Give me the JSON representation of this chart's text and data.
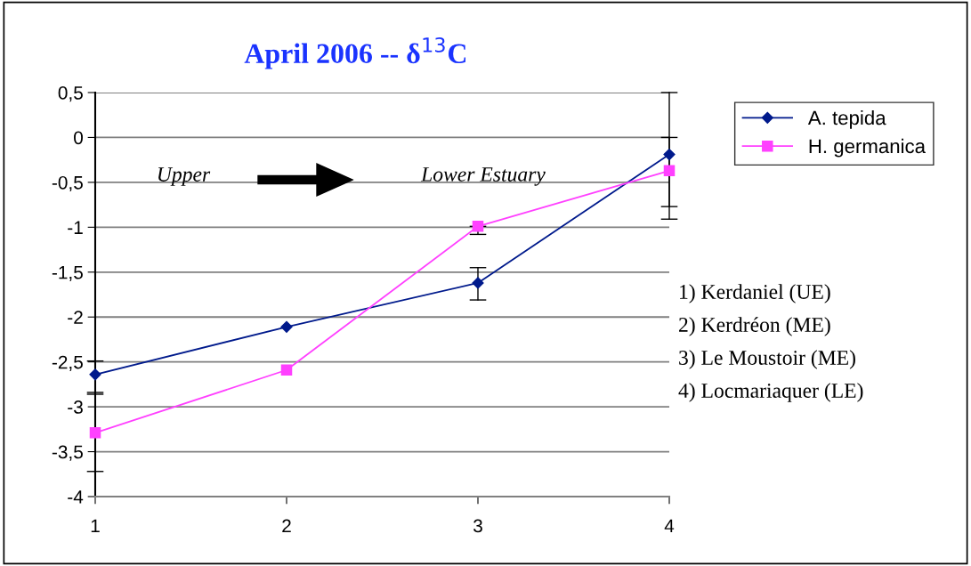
{
  "chart_data": {
    "type": "line",
    "title": "April 2006 -- δ$^{13}$C",
    "x": [
      1,
      2,
      3,
      4
    ],
    "series": [
      {
        "name": "A. tepida",
        "color": "#001a8c",
        "marker": "diamond",
        "values": [
          -2.64,
          -2.11,
          -1.62,
          -0.19
        ],
        "errors": [
          [
            -2.84,
            -2.49
          ],
          null,
          [
            -1.81,
            -1.45
          ],
          [
            -0.91,
            0.5
          ]
        ]
      },
      {
        "name": "H. germanica",
        "color": "#ff40ff",
        "marker": "square",
        "values": [
          -3.29,
          -2.59,
          -0.99,
          -0.37
        ],
        "errors": [
          [
            -3.72,
            -2.86
          ],
          null,
          [
            -1.08,
            -0.99
          ],
          [
            -0.77,
            0.0
          ]
        ]
      }
    ],
    "xlim": [
      1,
      4
    ],
    "xticks": [
      1,
      2,
      3,
      4
    ],
    "ylim": [
      -4,
      0.5
    ],
    "yticks": [
      {
        "value": 0.5,
        "label": "0,5"
      },
      0,
      {
        "value": -0.5,
        "label": "-0,5"
      },
      -1,
      {
        "value": -1.5,
        "label": "-1,5"
      },
      -2,
      {
        "value": -2.5,
        "label": "-2,5"
      },
      -3,
      {
        "value": -3.5,
        "label": "-3,5"
      },
      -4
    ],
    "grid": "y",
    "legend": "top right",
    "line_style": "solid",
    "annotations": [
      "Upper",
      "Lower Estuary",
      "1) Kerdaniel (UE)",
      "2) Kerdréon (ME)",
      "3) Le Moustoir (ME)",
      "4) Locmariaquer (LE)"
    ]
  }
}
